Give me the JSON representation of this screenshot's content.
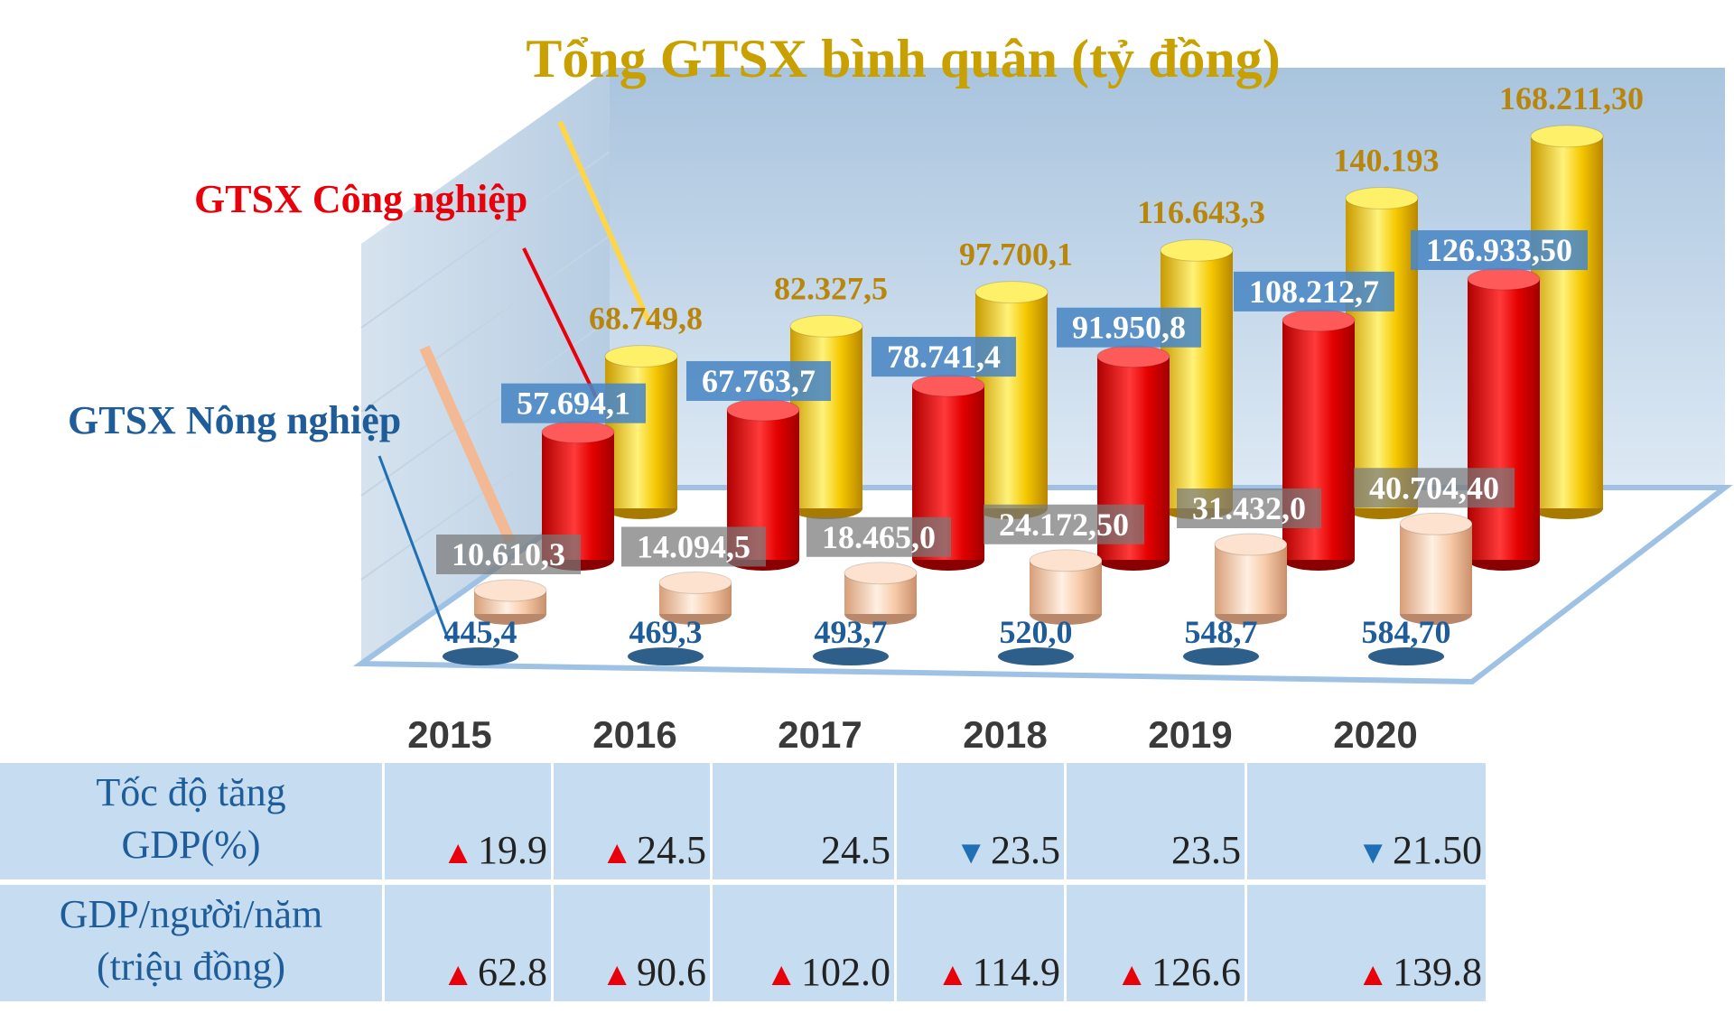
{
  "chart_data": {
    "type": "bar",
    "title": "Tổng GTSX bình quân (tỷ đồng)",
    "categories": [
      "2015",
      "2016",
      "2017",
      "2018",
      "2019",
      "2020"
    ],
    "series": [
      {
        "name": "GTSX Nông nghiệp",
        "values": [
          10610.3,
          14094.5,
          18465.0,
          24172.5,
          31432.0,
          40704.4
        ],
        "labels": [
          "10.610,3",
          "14.094,5",
          "18.465,0",
          "24.172,50",
          "31.432,0",
          "40.704,40"
        ],
        "color": "#f6c9a8"
      },
      {
        "name": "GTSX Công nghiệp",
        "values": [
          57694.1,
          67763.7,
          78741.4,
          91950.8,
          108212.7,
          126933.5
        ],
        "labels": [
          "57.694,1",
          "67.763,7",
          "78.741,4",
          "91.950,8",
          "108.212,7",
          "126.933,50"
        ],
        "color": "#e8000b"
      },
      {
        "name": "",
        "values": [
          68749.8,
          82327.5,
          97700.1,
          116643.3,
          140193,
          168211.3
        ],
        "labels": [
          "68.749,8",
          "82.327,5",
          "97.700,1",
          "116.643,3",
          "140.193",
          "168.211,30"
        ],
        "color": "#f2c200"
      },
      {
        "name": "",
        "values": [
          445.4,
          469.3,
          493.7,
          520.0,
          548.7,
          584.7
        ],
        "labels": [
          "445,4",
          "469,3",
          "493,7",
          "520,0",
          "548,7",
          "584,70"
        ],
        "color": "#2e5f8a"
      }
    ]
  },
  "legend": {
    "industry": "GTSX Công nghiệp",
    "agriculture": "GTSX Nông nghiệp"
  },
  "table": {
    "years": [
      "2015",
      "2016",
      "2017",
      "2018",
      "2019",
      "2020"
    ],
    "rows": [
      {
        "header_line1": "Tốc độ tăng",
        "header_line2": "GDP(%)",
        "cells": [
          {
            "arrow": "▲",
            "value": "19.9"
          },
          {
            "arrow": "▲",
            "value": "24.5"
          },
          {
            "arrow": "",
            "value": "24.5"
          },
          {
            "arrow": "▼",
            "value": "23.5"
          },
          {
            "arrow": "",
            "value": "23.5"
          },
          {
            "arrow": "▼",
            "value": "21.50"
          }
        ]
      },
      {
        "header_line1": "GDP/người/năm",
        "header_line2": "(triệu đồng)",
        "cells": [
          {
            "arrow": "▲",
            "value": "62.8"
          },
          {
            "arrow": "▲",
            "value": "90.6"
          },
          {
            "arrow": "▲",
            "value": "102.0"
          },
          {
            "arrow": "▲",
            "value": "114.9"
          },
          {
            "arrow": "▲",
            "value": "126.6"
          },
          {
            "arrow": "▲",
            "value": "139.8"
          }
        ]
      }
    ]
  },
  "colors": {
    "up_arrow": "#e8000b",
    "down_arrow": "#1f6fb5",
    "title": "#c8a000",
    "gold_label": "#b8860b",
    "blue_label": "#1f5d9a"
  }
}
